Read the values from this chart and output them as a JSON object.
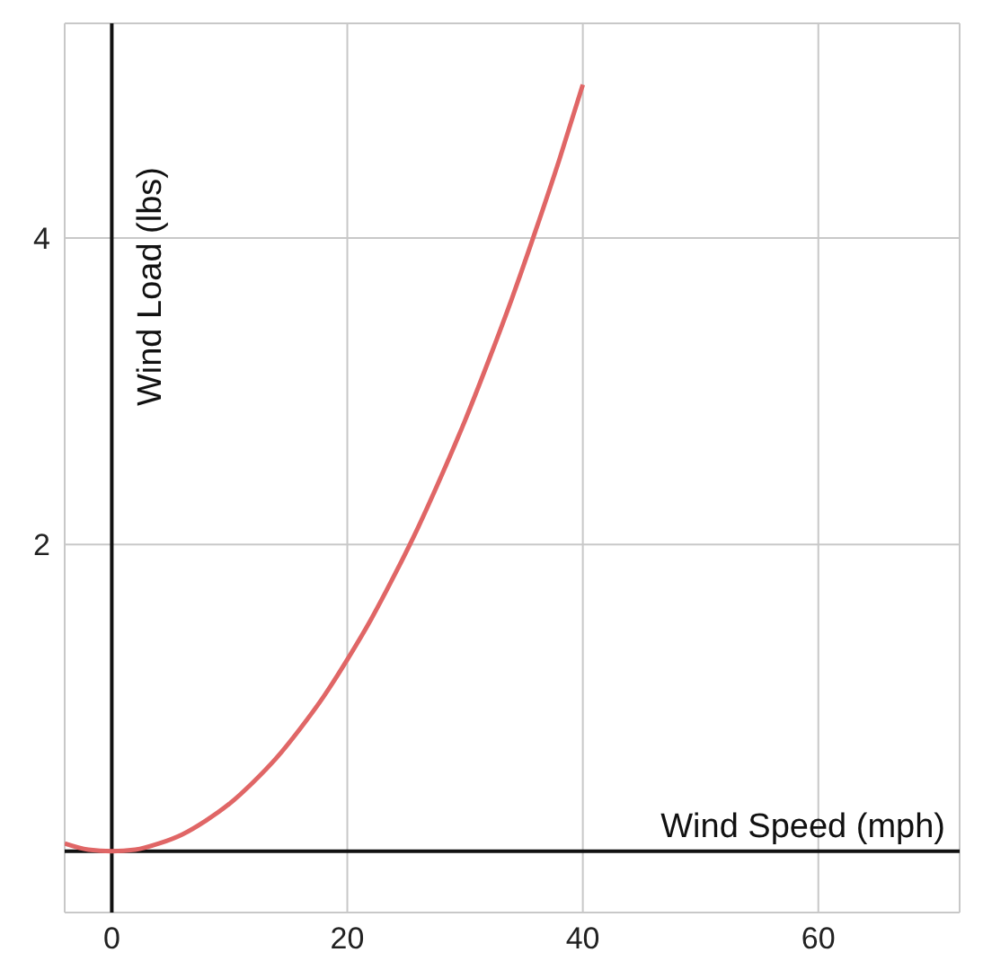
{
  "chart_data": {
    "type": "line",
    "xlabel": "Wind Speed (mph)",
    "ylabel": "Wind Load (lbs)",
    "x": [
      -4,
      -2,
      0,
      2,
      4,
      6,
      8,
      10,
      12,
      14,
      16,
      18,
      20,
      22,
      24,
      26,
      28,
      30,
      32,
      34,
      36,
      38,
      40
    ],
    "series": [
      {
        "color": "#e06666",
        "values": [
          0.05,
          0.01,
          0,
          0.01,
          0.05,
          0.11,
          0.2,
          0.31,
          0.45,
          0.61,
          0.8,
          1.01,
          1.25,
          1.51,
          1.8,
          2.11,
          2.45,
          2.81,
          3.2,
          3.61,
          4.05,
          4.51,
          5
        ]
      }
    ],
    "xlim": [
      -4,
      72
    ],
    "ylim": [
      -0.4,
      5.4
    ],
    "xticks": [
      0,
      20,
      40,
      60
    ],
    "yticks": [
      2,
      4
    ],
    "grid": true,
    "marker": "none",
    "line_style": "solid"
  }
}
